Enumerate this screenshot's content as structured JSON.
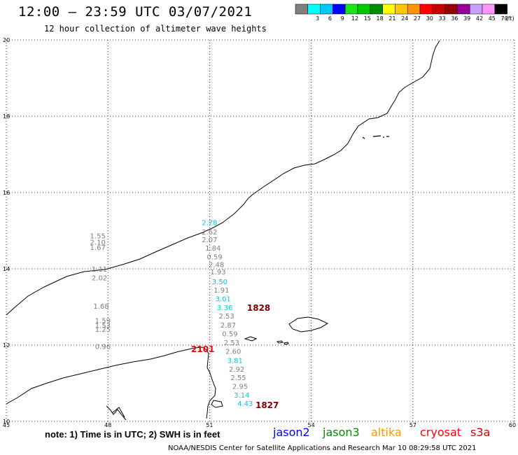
{
  "title": "12:00 — 23:59 UTC 03/07/2021",
  "subtitle": "12 hour collection of altimeter wave heights",
  "colorbar": {
    "unit": "(ft)",
    "bins": [
      {
        "label": "",
        "color": "#7f7f7f"
      },
      {
        "label": "3",
        "color": "#00ffff"
      },
      {
        "label": "6",
        "color": "#00c8ff"
      },
      {
        "label": "9",
        "color": "#0000ff"
      },
      {
        "label": "12",
        "color": "#19e619"
      },
      {
        "label": "15",
        "color": "#00c800"
      },
      {
        "label": "18",
        "color": "#008c00"
      },
      {
        "label": "21",
        "color": "#ffff00"
      },
      {
        "label": "24",
        "color": "#ffc800"
      },
      {
        "label": "27",
        "color": "#ff9600"
      },
      {
        "label": "30",
        "color": "#ff0000"
      },
      {
        "label": "33",
        "color": "#c80000"
      },
      {
        "label": "36",
        "color": "#960000"
      },
      {
        "label": "39",
        "color": "#990099"
      },
      {
        "label": "42",
        "color": "#c8a0ff"
      },
      {
        "label": "45",
        "color": "#ff96ff"
      },
      {
        "label": "70",
        "color": "#000000"
      }
    ]
  },
  "axes": {
    "lat_ticks": [
      {
        "label": "20",
        "lat": 20
      },
      {
        "label": "18",
        "lat": 18
      },
      {
        "label": "16",
        "lat": 16
      },
      {
        "label": "14",
        "lat": 14
      },
      {
        "label": "12",
        "lat": 12
      },
      {
        "label": "10",
        "lat": 10
      }
    ],
    "lon_ticks": [
      {
        "label": "45",
        "lon": 45
      },
      {
        "label": "48",
        "lon": 48
      },
      {
        "label": "51",
        "lon": 51
      },
      {
        "label": "54",
        "lon": 54
      },
      {
        "label": "57",
        "lon": 57
      },
      {
        "label": "60",
        "lon": 60
      }
    ],
    "extent": {
      "lon": [
        45,
        60
      ],
      "lat": [
        10,
        20
      ]
    }
  },
  "observations": [
    {
      "value": "2.78",
      "lon": 51.0,
      "lat": 15.15,
      "color": "#00c8e6"
    },
    {
      "value": "2.62",
      "lon": 51.0,
      "lat": 14.9,
      "color": "#7f7f7f"
    },
    {
      "value": "2.07",
      "lon": 51.0,
      "lat": 14.7,
      "color": "#7f7f7f"
    },
    {
      "value": "1.84",
      "lon": 51.1,
      "lat": 14.48,
      "color": "#7f7f7f"
    },
    {
      "value": "0.59",
      "lon": 51.15,
      "lat": 14.25,
      "color": "#7f7f7f"
    },
    {
      "value": "2.48",
      "lon": 51.2,
      "lat": 14.05,
      "color": "#7f7f7f"
    },
    {
      "value": "1.93",
      "lon": 51.25,
      "lat": 13.85,
      "color": "#7f7f7f"
    },
    {
      "value": "3.50",
      "lon": 51.3,
      "lat": 13.6,
      "color": "#00c8e6"
    },
    {
      "value": "1.91",
      "lon": 51.35,
      "lat": 13.38,
      "color": "#7f7f7f"
    },
    {
      "value": "3.01",
      "lon": 51.4,
      "lat": 13.15,
      "color": "#00c8e6"
    },
    {
      "value": "3.36",
      "lon": 51.45,
      "lat": 12.92,
      "color": "#00c8e6"
    },
    {
      "value": "2.53",
      "lon": 51.5,
      "lat": 12.7,
      "color": "#7f7f7f"
    },
    {
      "value": "2.87",
      "lon": 51.55,
      "lat": 12.46,
      "color": "#7f7f7f"
    },
    {
      "value": "0.59",
      "lon": 51.6,
      "lat": 12.23,
      "color": "#7f7f7f"
    },
    {
      "value": "2.53",
      "lon": 51.65,
      "lat": 12.0,
      "color": "#7f7f7f"
    },
    {
      "value": "2.60",
      "lon": 51.7,
      "lat": 11.77,
      "color": "#7f7f7f"
    },
    {
      "value": "3.81",
      "lon": 51.75,
      "lat": 11.53,
      "color": "#00c8e6"
    },
    {
      "value": "2.92",
      "lon": 51.8,
      "lat": 11.3,
      "color": "#7f7f7f"
    },
    {
      "value": "2.55",
      "lon": 51.85,
      "lat": 11.08,
      "color": "#7f7f7f"
    },
    {
      "value": "2.95",
      "lon": 51.9,
      "lat": 10.85,
      "color": "#7f7f7f"
    },
    {
      "value": "3.14",
      "lon": 51.95,
      "lat": 10.62,
      "color": "#00c8e6"
    },
    {
      "value": "4.43",
      "lon": 52.05,
      "lat": 10.4,
      "color": "#00c8e6"
    },
    {
      "value": "1.55",
      "lon": 47.7,
      "lat": 14.8,
      "color": "#7f7f7f"
    },
    {
      "value": "2.10",
      "lon": 47.7,
      "lat": 14.63,
      "color": "#7f7f7f"
    },
    {
      "value": "1.67",
      "lon": 47.7,
      "lat": 14.5,
      "color": "#7f7f7f"
    },
    {
      "value": "1.11",
      "lon": 47.75,
      "lat": 13.93,
      "color": "#7f7f7f"
    },
    {
      "value": "2.02",
      "lon": 47.75,
      "lat": 13.7,
      "color": "#7f7f7f"
    },
    {
      "value": "1.68",
      "lon": 47.8,
      "lat": 12.95,
      "color": "#7f7f7f"
    },
    {
      "value": "1.59",
      "lon": 47.85,
      "lat": 12.58,
      "color": "#7f7f7f"
    },
    {
      "value": "1.53",
      "lon": 47.85,
      "lat": 12.45,
      "color": "#7f7f7f"
    },
    {
      "value": "1.25",
      "lon": 47.85,
      "lat": 12.35,
      "color": "#7f7f7f"
    },
    {
      "value": "0.96",
      "lon": 47.85,
      "lat": 11.9,
      "color": "#7f7f7f"
    }
  ],
  "timestamps": [
    {
      "label": "1828",
      "lon": 52.45,
      "lat": 12.9,
      "color": "#800000"
    },
    {
      "label": "2101",
      "lon": 50.8,
      "lat": 11.82,
      "color": "#ff0000"
    },
    {
      "label": "1827",
      "lon": 52.7,
      "lat": 10.35,
      "color": "#800000"
    }
  ],
  "note": "note: 1) Time is in UTC; 2) SWH is in feet",
  "satellites": [
    {
      "name": "jason2",
      "color": "#0000ff"
    },
    {
      "name": "jason3",
      "color": "#008c00"
    },
    {
      "name": "altika",
      "color": "#ff9600"
    },
    {
      "name": "cryosat",
      "color": "#ff0000"
    },
    {
      "name": "s3a",
      "color": "#c80000"
    }
  ],
  "credit": "NOAA/NESDIS Center for Satellite Applications and Research   Mar 10 08:29:58 UTC 2021"
}
